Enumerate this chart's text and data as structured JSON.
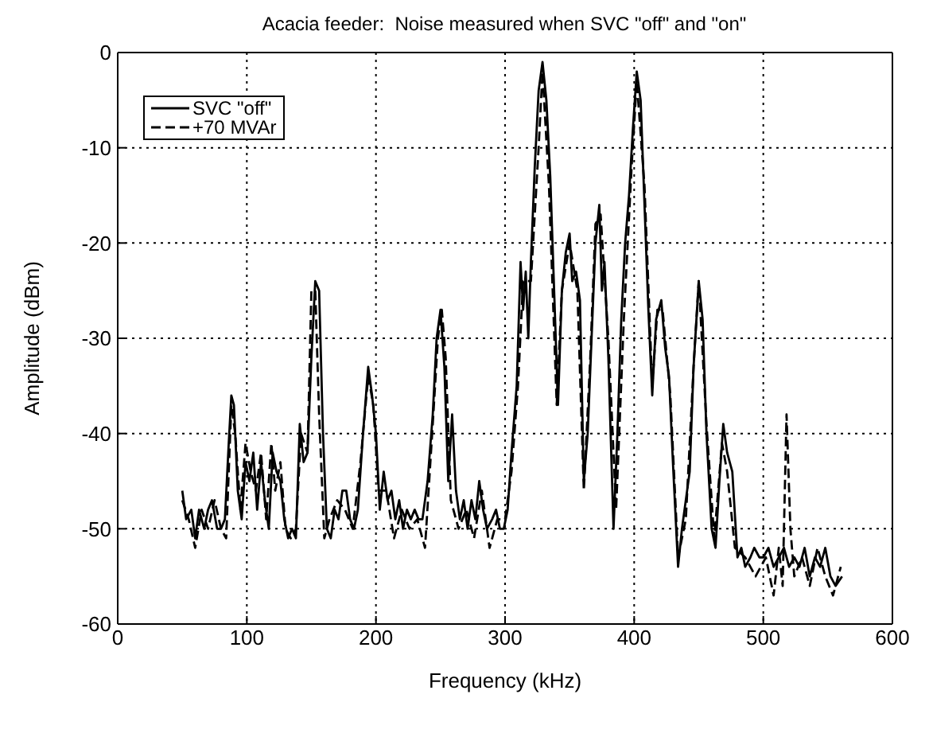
{
  "chart_data": {
    "type": "line",
    "title": "Acacia feeder:  Noise measured when SVC \"off\" and \"on\"",
    "xlabel": "Frequency (kHz)",
    "ylabel": "Amplitude (dBm)",
    "xlim": [
      0,
      600
    ],
    "xticks": [
      0,
      100,
      200,
      300,
      400,
      500,
      600
    ],
    "ylim": [
      -60,
      0
    ],
    "yticks": [
      0,
      -10,
      -20,
      -30,
      -40,
      -50,
      -60
    ],
    "grid": true,
    "legend": "top left",
    "marker": "none",
    "series": [
      {
        "name": "SVC \"off\"",
        "color": "#000000",
        "line_style": "solid",
        "x": [
          50,
          53,
          57,
          60,
          63,
          67,
          70,
          73,
          77,
          80,
          83,
          86,
          88,
          90,
          93,
          96,
          99,
          102,
          105,
          108,
          111,
          114,
          117,
          120,
          123,
          126,
          129,
          132,
          135,
          138,
          141,
          144,
          147,
          150,
          153,
          156,
          159,
          162,
          165,
          168,
          171,
          174,
          177,
          180,
          183,
          186,
          190,
          194,
          197,
          200,
          203,
          206,
          209,
          212,
          215,
          218,
          221,
          224,
          227,
          230,
          233,
          236,
          240,
          244,
          247,
          250,
          253,
          256,
          259,
          262,
          265,
          268,
          271,
          274,
          277,
          280,
          283,
          286,
          290,
          293,
          296,
          299,
          302,
          305,
          309,
          312,
          314,
          316,
          318,
          320,
          323,
          326,
          329,
          332,
          335,
          338,
          341,
          344,
          347,
          350,
          352,
          355,
          358,
          361,
          364,
          367,
          370,
          373,
          375,
          377,
          380,
          384,
          387,
          390,
          393,
          396,
          399,
          402,
          405,
          408,
          411,
          414,
          417,
          421,
          424,
          427,
          430,
          434,
          437,
          440,
          443,
          446,
          450,
          453,
          456,
          460,
          463,
          466,
          469,
          472,
          476,
          480,
          483,
          486,
          490,
          493,
          497,
          500,
          504,
          508,
          512,
          516,
          520,
          524,
          528,
          532,
          536,
          540,
          544,
          548,
          552,
          556,
          561
        ],
        "values": [
          -46,
          -49,
          -48,
          -51,
          -48,
          -50,
          -48,
          -47,
          -50,
          -50,
          -49,
          -41,
          -36,
          -37,
          -46,
          -49,
          -43,
          -45,
          -42,
          -48,
          -43,
          -47,
          -50,
          -42,
          -44,
          -45,
          -49,
          -51,
          -50,
          -51,
          -39,
          -43,
          -42,
          -32,
          -24,
          -25,
          -40,
          -50,
          -51,
          -48,
          -49,
          -46,
          -46,
          -49,
          -50,
          -48,
          -40,
          -33,
          -36,
          -40,
          -48,
          -44,
          -47,
          -46,
          -49,
          -47,
          -50,
          -48,
          -49,
          -48,
          -49,
          -49,
          -45,
          -38,
          -30,
          -27,
          -33,
          -45,
          -38,
          -46,
          -49,
          -47,
          -50,
          -47,
          -49,
          -45,
          -48,
          -50,
          -49,
          -48,
          -50,
          -50,
          -48,
          -42,
          -35,
          -22,
          -27,
          -23,
          -30,
          -22,
          -12,
          -4,
          -1,
          -5,
          -13,
          -25,
          -37,
          -25,
          -21,
          -19,
          -24,
          -23,
          -26,
          -45,
          -40,
          -30,
          -20,
          -16,
          -25,
          -22,
          -32,
          -50,
          -40,
          -28,
          -20,
          -15,
          -8,
          -2,
          -5,
          -16,
          -27,
          -36,
          -28,
          -26,
          -31,
          -34,
          -43,
          -54,
          -50,
          -47,
          -44,
          -33,
          -24,
          -28,
          -40,
          -50,
          -52,
          -45,
          -39,
          -42,
          -44,
          -53,
          -52,
          -54,
          -53,
          -52,
          -53,
          -53,
          -52,
          -54,
          -53,
          -52,
          -54,
          -53,
          -54,
          -52,
          -55,
          -53,
          -54,
          -52,
          -55,
          -56,
          -55
        ]
      },
      {
        "name": "+70 MVAr",
        "color": "#000000",
        "line_style": "dashed",
        "x": [
          50,
          55,
          60,
          65,
          70,
          75,
          80,
          84,
          88,
          91,
          95,
          99,
          103,
          107,
          111,
          115,
          119,
          122,
          126,
          130,
          134,
          138,
          142,
          147,
          150,
          153,
          156,
          160,
          164,
          170,
          176,
          182,
          188,
          194,
          198,
          202,
          208,
          214,
          220,
          226,
          232,
          238,
          244,
          248,
          251,
          254,
          258,
          264,
          270,
          276,
          282,
          288,
          294,
          300,
          305,
          310,
          314,
          320,
          326,
          329,
          334,
          340,
          344,
          350,
          356,
          361,
          366,
          370,
          374,
          380,
          386,
          392,
          398,
          402,
          408,
          414,
          418,
          422,
          428,
          434,
          440,
          446,
          450,
          456,
          462,
          468,
          472,
          478,
          486,
          494,
          502,
          508,
          512,
          515,
          518,
          521,
          524,
          530,
          536,
          542,
          548,
          554,
          560
        ],
        "values": [
          -47,
          -49,
          -52,
          -48,
          -50,
          -47,
          -50,
          -51,
          -37,
          -40,
          -48,
          -41,
          -44,
          -46,
          -42,
          -49,
          -41,
          -46,
          -43,
          -50,
          -51,
          -50,
          -40,
          -42,
          -25,
          -25,
          -38,
          -51,
          -49,
          -47,
          -48,
          -50,
          -43,
          -34,
          -37,
          -46,
          -46,
          -51,
          -48,
          -50,
          -49,
          -52,
          -39,
          -30,
          -27,
          -32,
          -47,
          -50,
          -48,
          -51,
          -46,
          -52,
          -49,
          -49,
          -44,
          -35,
          -24,
          -24,
          -10,
          -2,
          -14,
          -37,
          -25,
          -20,
          -25,
          -46,
          -32,
          -18,
          -17,
          -30,
          -48,
          -28,
          -12,
          -3,
          -14,
          -35,
          -27,
          -27,
          -36,
          -53,
          -49,
          -33,
          -24,
          -39,
          -51,
          -41,
          -44,
          -52,
          -53,
          -55,
          -53,
          -57,
          -52,
          -56,
          -38,
          -50,
          -55,
          -53,
          -56,
          -52,
          -55,
          -57,
          -54
        ]
      }
    ]
  }
}
